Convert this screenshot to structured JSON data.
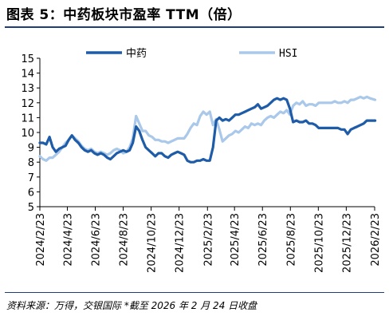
{
  "figure": {
    "title": "图表 5：中药板块市盈率 TTM（倍）",
    "source": "资料来源：万得，交银国际  *截至 2026 年 2 月 24 日收盘"
  },
  "chart_data": {
    "type": "line",
    "title": "",
    "xlabel": "",
    "ylabel": "",
    "ylim": [
      5,
      15
    ],
    "yticks": [
      5,
      6,
      7,
      8,
      9,
      10,
      11,
      12,
      13,
      14,
      15
    ],
    "xticks": [
      "2024/2/23",
      "2024/4/23",
      "2024/6/23",
      "2024/8/23",
      "2024/10/23",
      "2024/12/23",
      "2025/2/23",
      "2025/4/23",
      "2025/6/23",
      "2025/8/23",
      "2025/10/23",
      "2025/12/23",
      "2026/2/23"
    ],
    "grid": false,
    "legend_position": "top",
    "colors": {
      "中药": "#1f5ca8",
      "HSI": "#a9c8ea"
    },
    "series": [
      {
        "name": "中药",
        "x": [
          "2024/2/23",
          "2024/3/1",
          "2024/3/8",
          "2024/3/15",
          "2024/3/22",
          "2024/3/29",
          "2024/4/5",
          "2024/4/12",
          "2024/4/19",
          "2024/4/26",
          "2024/5/3",
          "2024/5/10",
          "2024/5/17",
          "2024/5/24",
          "2024/5/31",
          "2024/6/7",
          "2024/6/14",
          "2024/6/21",
          "2024/6/28",
          "2024/7/5",
          "2024/7/12",
          "2024/7/19",
          "2024/7/26",
          "2024/8/2",
          "2024/8/9",
          "2024/8/16",
          "2024/8/23",
          "2024/8/30",
          "2024/9/6",
          "2024/9/13",
          "2024/9/20",
          "2024/9/27",
          "2024/10/4",
          "2024/10/11",
          "2024/10/18",
          "2024/10/25",
          "2024/11/1",
          "2024/11/8",
          "2024/11/15",
          "2024/11/22",
          "2024/11/29",
          "2024/12/6",
          "2024/12/13",
          "2024/12/20",
          "2024/12/27",
          "2025/1/3",
          "2025/1/10",
          "2025/1/17",
          "2025/1/24",
          "2025/1/31",
          "2025/2/7",
          "2025/2/14",
          "2025/2/21",
          "2025/2/28",
          "2025/3/7",
          "2025/3/14",
          "2025/3/21",
          "2025/3/28",
          "2025/4/4",
          "2025/4/11",
          "2025/4/18",
          "2025/4/25",
          "2025/5/2",
          "2025/5/9",
          "2025/5/16",
          "2025/5/23",
          "2025/5/30",
          "2025/6/6",
          "2025/6/13",
          "2025/6/20",
          "2025/6/27",
          "2025/7/4",
          "2025/7/11",
          "2025/7/18",
          "2025/7/25",
          "2025/8/1",
          "2025/8/8",
          "2025/8/15",
          "2025/8/22",
          "2025/8/29",
          "2025/9/5",
          "2025/9/12",
          "2025/9/19",
          "2025/9/26",
          "2025/10/3",
          "2025/10/10",
          "2025/10/17",
          "2025/10/24",
          "2025/10/31",
          "2025/11/7",
          "2025/11/14",
          "2025/11/21",
          "2025/11/28",
          "2025/12/5",
          "2025/12/12",
          "2025/12/19",
          "2025/12/26",
          "2026/1/2",
          "2026/1/9",
          "2026/1/16",
          "2026/1/23",
          "2026/1/30",
          "2026/2/6",
          "2026/2/13",
          "2026/2/24"
        ],
        "y": [
          9.3,
          9.3,
          9.2,
          9.7,
          9.0,
          8.7,
          8.9,
          9.0,
          9.1,
          9.5,
          9.8,
          9.5,
          9.3,
          9.0,
          8.8,
          8.7,
          8.8,
          8.6,
          8.5,
          8.6,
          8.5,
          8.3,
          8.2,
          8.4,
          8.6,
          8.7,
          8.8,
          8.7,
          8.8,
          9.3,
          10.4,
          10.1,
          9.5,
          9.0,
          8.8,
          8.6,
          8.4,
          8.6,
          8.6,
          8.4,
          8.3,
          8.5,
          8.6,
          8.7,
          8.6,
          8.5,
          8.1,
          8.0,
          8.0,
          8.1,
          8.1,
          8.2,
          8.1,
          8.1,
          9.0,
          10.8,
          11.0,
          10.8,
          10.9,
          10.8,
          11.0,
          11.2,
          11.2,
          11.3,
          11.4,
          11.5,
          11.6,
          11.7,
          11.9,
          11.6,
          11.7,
          11.8,
          12.0,
          12.2,
          12.3,
          12.2,
          12.3,
          12.2,
          11.6,
          10.7,
          10.8,
          10.7,
          10.7,
          10.8,
          10.6,
          10.6,
          10.5,
          10.3,
          10.3,
          10.3,
          10.3,
          10.3,
          10.3,
          10.3,
          10.2,
          10.2,
          9.9,
          10.2,
          10.3,
          10.4,
          10.5,
          10.6,
          10.8,
          10.8,
          10.8
        ]
      },
      {
        "name": "HSI",
        "x": [
          "2024/2/23",
          "2024/3/1",
          "2024/3/8",
          "2024/3/15",
          "2024/3/22",
          "2024/3/29",
          "2024/4/5",
          "2024/4/12",
          "2024/4/19",
          "2024/4/26",
          "2024/5/3",
          "2024/5/10",
          "2024/5/17",
          "2024/5/24",
          "2024/5/31",
          "2024/6/7",
          "2024/6/14",
          "2024/6/21",
          "2024/6/28",
          "2024/7/5",
          "2024/7/12",
          "2024/7/19",
          "2024/7/26",
          "2024/8/2",
          "2024/8/9",
          "2024/8/16",
          "2024/8/23",
          "2024/8/30",
          "2024/9/6",
          "2024/9/13",
          "2024/9/20",
          "2024/9/27",
          "2024/10/4",
          "2024/10/11",
          "2024/10/18",
          "2024/10/25",
          "2024/11/1",
          "2024/11/8",
          "2024/11/15",
          "2024/11/22",
          "2024/11/29",
          "2024/12/6",
          "2024/12/13",
          "2024/12/20",
          "2024/12/27",
          "2025/1/3",
          "2025/1/10",
          "2025/1/17",
          "2025/1/24",
          "2025/1/31",
          "2025/2/7",
          "2025/2/14",
          "2025/2/21",
          "2025/2/28",
          "2025/3/7",
          "2025/3/14",
          "2025/3/21",
          "2025/3/28",
          "2025/4/4",
          "2025/4/11",
          "2025/4/18",
          "2025/4/25",
          "2025/5/2",
          "2025/5/9",
          "2025/5/16",
          "2025/5/23",
          "2025/5/30",
          "2025/6/6",
          "2025/6/13",
          "2025/6/20",
          "2025/6/27",
          "2025/7/4",
          "2025/7/11",
          "2025/7/18",
          "2025/7/25",
          "2025/8/1",
          "2025/8/8",
          "2025/8/15",
          "2025/8/22",
          "2025/8/29",
          "2025/9/5",
          "2025/9/12",
          "2025/9/19",
          "2025/9/26",
          "2025/10/3",
          "2025/10/10",
          "2025/10/17",
          "2025/10/24",
          "2025/10/31",
          "2025/11/7",
          "2025/11/14",
          "2025/11/21",
          "2025/11/28",
          "2025/12/5",
          "2025/12/12",
          "2025/12/19",
          "2025/12/26",
          "2026/1/2",
          "2026/1/9",
          "2026/1/16",
          "2026/1/23",
          "2026/1/30",
          "2026/2/6",
          "2026/2/13",
          "2026/2/24"
        ],
        "y": [
          8.4,
          8.2,
          8.1,
          8.3,
          8.3,
          8.5,
          8.7,
          9.0,
          9.3,
          9.5,
          9.8,
          9.6,
          9.4,
          9.1,
          8.9,
          8.8,
          8.9,
          8.7,
          8.6,
          8.7,
          8.6,
          8.5,
          8.6,
          8.8,
          8.9,
          8.8,
          8.6,
          8.7,
          9.0,
          9.6,
          11.1,
          10.6,
          10.1,
          10.1,
          9.8,
          9.7,
          9.5,
          9.5,
          9.4,
          9.4,
          9.3,
          9.4,
          9.5,
          9.6,
          9.6,
          9.6,
          9.9,
          10.3,
          10.6,
          10.5,
          11.1,
          11.4,
          11.2,
          11.4,
          10.5,
          10.9,
          10.2,
          9.4,
          9.6,
          9.8,
          9.9,
          10.1,
          10.0,
          10.2,
          10.4,
          10.3,
          10.6,
          10.5,
          10.6,
          10.5,
          10.8,
          11.0,
          11.1,
          11.0,
          11.2,
          11.4,
          11.3,
          11.5,
          11.2,
          11.8,
          12.0,
          11.9,
          12.1,
          11.8,
          11.9,
          11.9,
          11.8,
          12.0,
          12.0,
          12.0,
          12.0,
          12.0,
          12.1,
          12.0,
          12.0,
          12.1,
          12.0,
          12.2,
          12.2,
          12.3,
          12.4,
          12.3,
          12.4,
          12.3,
          12.2
        ]
      }
    ]
  }
}
